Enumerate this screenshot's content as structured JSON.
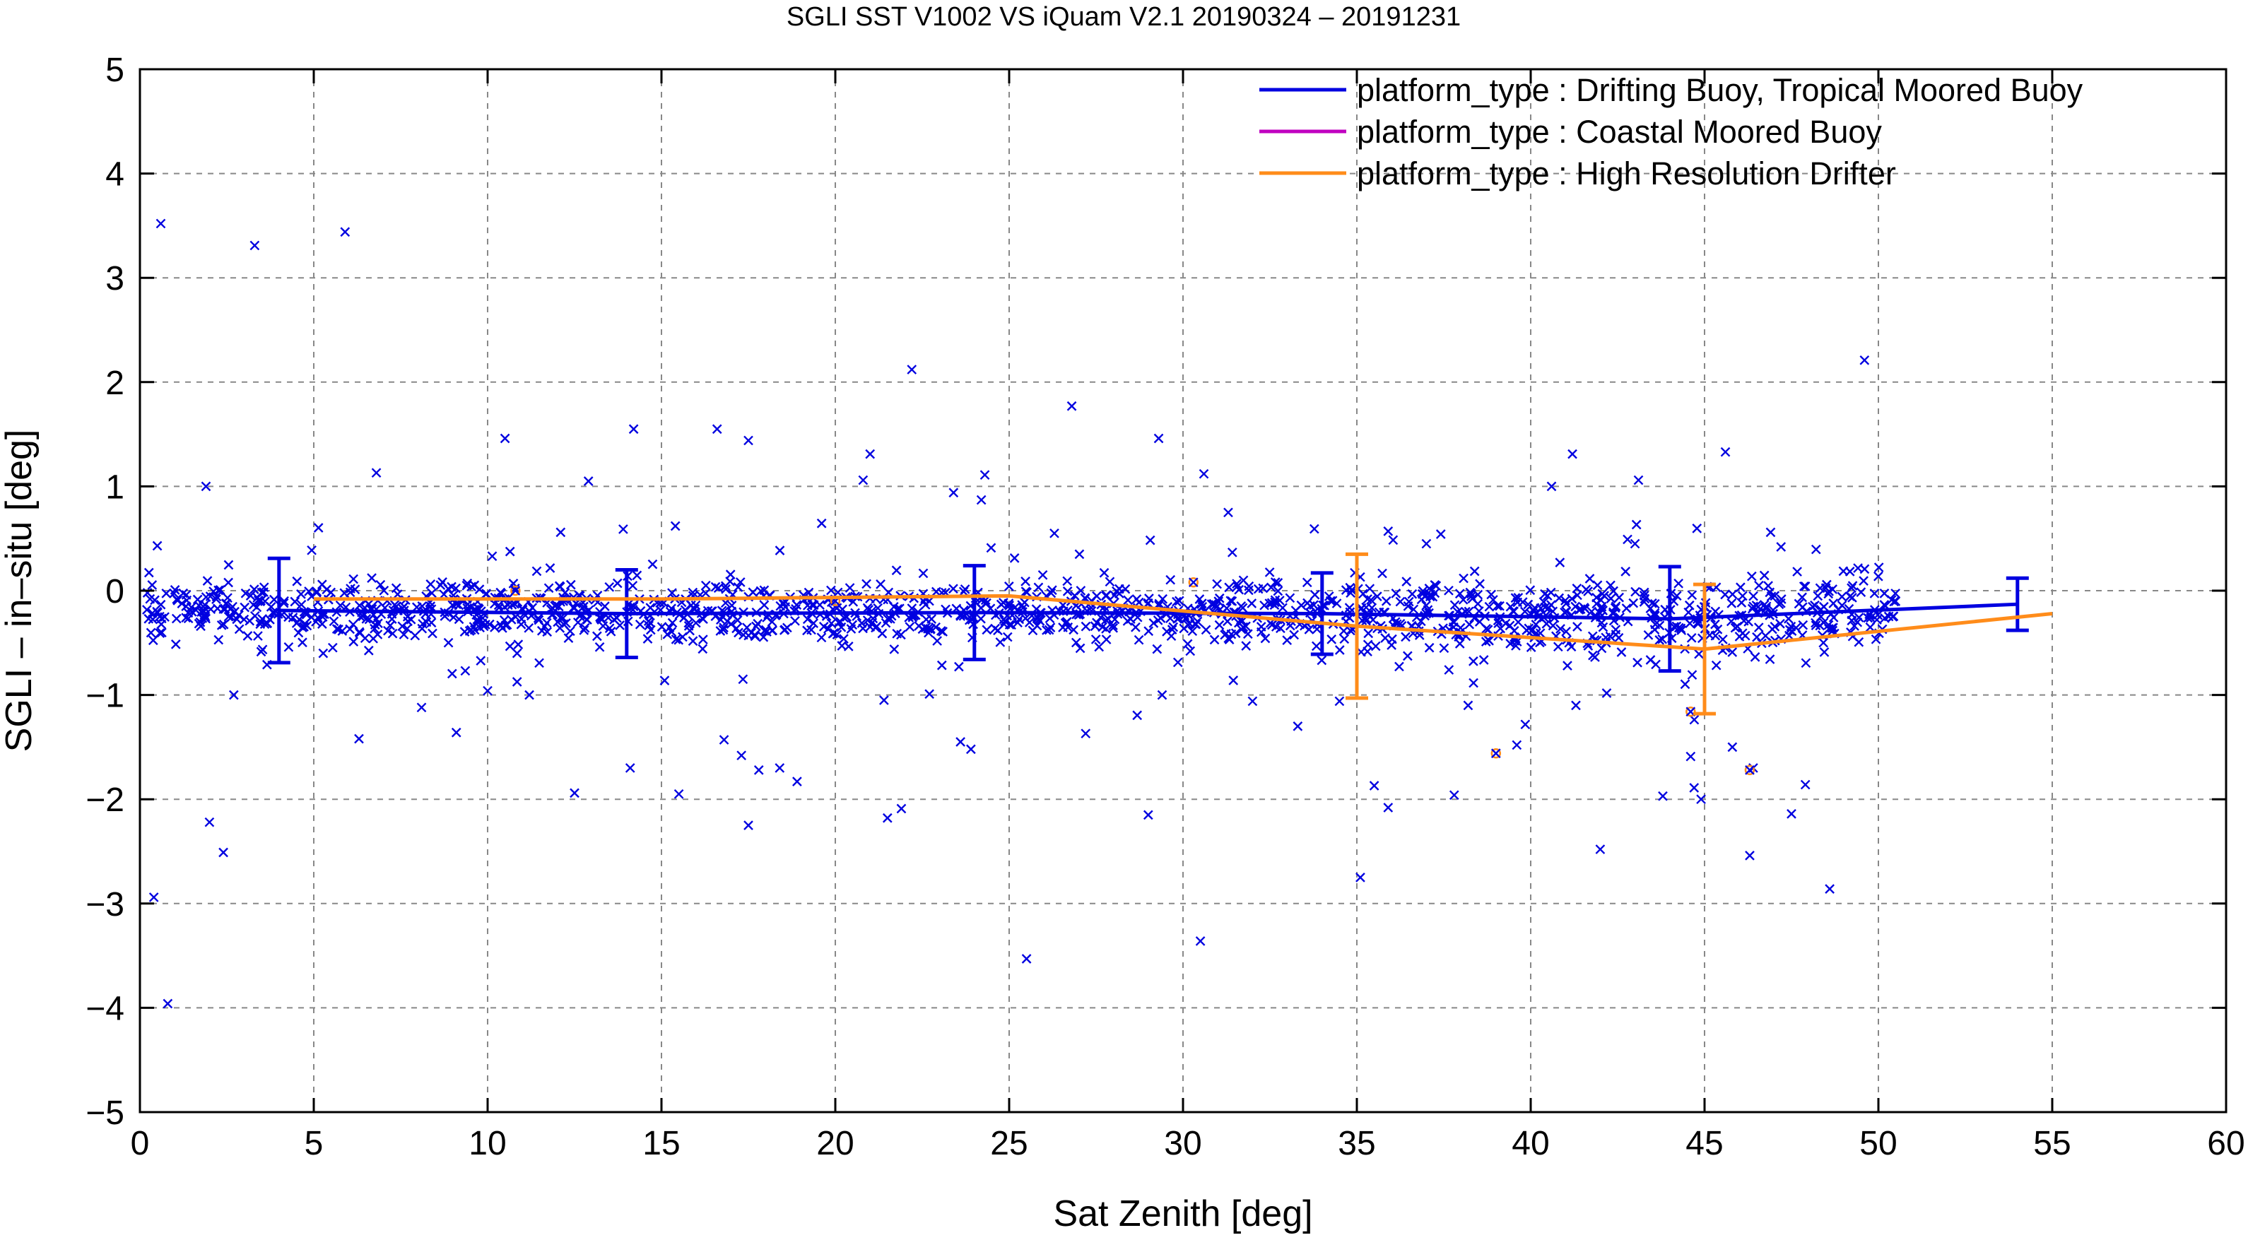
{
  "chart_data": {
    "type": "scatter",
    "title": "SGLI SST V1002 VS iQuam V2.1 20190324 – 20191231",
    "xlabel": "Sat Zenith [deg]",
    "ylabel": "SGLI – in–situ [deg]",
    "xlim": [
      0,
      60
    ],
    "ylim": [
      -5,
      5
    ],
    "x_ticks": [
      0,
      5,
      10,
      15,
      20,
      25,
      30,
      35,
      40,
      45,
      50,
      55,
      60
    ],
    "y_ticks": [
      -5,
      -4,
      -3,
      -2,
      -1,
      0,
      1,
      2,
      3,
      4,
      5
    ],
    "y_tick_labels": [
      "−5",
      "−4",
      "−3",
      "−2",
      "−1",
      "0",
      "1",
      "2",
      "3",
      "4",
      "5"
    ],
    "grid": true,
    "legend_position": "top-right",
    "colors": {
      "drifting": "#0000e0",
      "coastal": "#c000c0",
      "hrd": "#ff8c1a",
      "grid": "#888888"
    },
    "series": [
      {
        "name": "platform_type : Drifting Buoy, Tropical Moored Buoy",
        "color": "#0000e0",
        "mean_line": {
          "x": [
            4,
            14,
            24,
            34,
            44,
            54
          ],
          "y": [
            -0.19,
            -0.22,
            -0.21,
            -0.22,
            -0.27,
            -0.13
          ],
          "std": [
            0.5,
            0.42,
            0.45,
            0.39,
            0.5,
            0.25
          ]
        },
        "outliers": [
          [
            0.6,
            3.52
          ],
          [
            3.3,
            3.31
          ],
          [
            5.9,
            3.44
          ],
          [
            22.2,
            2.12
          ],
          [
            49.6,
            2.21
          ],
          [
            26.8,
            1.77
          ],
          [
            10.5,
            1.46
          ],
          [
            14.2,
            1.55
          ],
          [
            16.6,
            1.55
          ],
          [
            17.5,
            1.44
          ],
          [
            29.3,
            1.46
          ],
          [
            41.2,
            1.31
          ],
          [
            45.6,
            1.33
          ],
          [
            21.0,
            1.31
          ],
          [
            6.8,
            1.13
          ],
          [
            12.9,
            1.05
          ],
          [
            24.3,
            1.11
          ],
          [
            40.6,
            1.0
          ],
          [
            43.1,
            1.06
          ],
          [
            1.9,
            1.0
          ],
          [
            23.4,
            0.94
          ],
          [
            24.2,
            0.87
          ],
          [
            30.6,
            1.12
          ],
          [
            20.8,
            1.06
          ],
          [
            31.3,
            0.75
          ],
          [
            13.9,
            0.59
          ],
          [
            15.4,
            0.62
          ],
          [
            35.9,
            0.57
          ],
          [
            0.5,
            0.43
          ],
          [
            12.1,
            0.56
          ],
          [
            46.9,
            0.56
          ],
          [
            37.0,
            0.45
          ],
          [
            26.3,
            0.55
          ],
          [
            47.2,
            0.42
          ],
          [
            43.0,
            0.45
          ],
          [
            2.0,
            -2.22
          ],
          [
            2.4,
            -2.51
          ],
          [
            0.4,
            -2.94
          ],
          [
            0.8,
            -3.96
          ],
          [
            6.3,
            -1.42
          ],
          [
            9.1,
            -1.36
          ],
          [
            12.5,
            -1.94
          ],
          [
            14.1,
            -1.7
          ],
          [
            15.5,
            -1.95
          ],
          [
            16.8,
            -1.43
          ],
          [
            17.3,
            -1.58
          ],
          [
            17.8,
            -1.72
          ],
          [
            18.4,
            -1.7
          ],
          [
            18.9,
            -1.83
          ],
          [
            17.5,
            -2.25
          ],
          [
            21.5,
            -2.18
          ],
          [
            21.9,
            -2.09
          ],
          [
            23.6,
            -1.45
          ],
          [
            23.9,
            -1.52
          ],
          [
            25.5,
            -3.53
          ],
          [
            29.0,
            -2.15
          ],
          [
            30.5,
            -3.36
          ],
          [
            35.1,
            -2.75
          ],
          [
            35.5,
            -1.87
          ],
          [
            35.9,
            -2.08
          ],
          [
            37.8,
            -1.96
          ],
          [
            39.6,
            -1.48
          ],
          [
            42.0,
            -2.48
          ],
          [
            43.8,
            -1.97
          ],
          [
            44.6,
            -1.59
          ],
          [
            44.9,
            -2.0
          ],
          [
            45.8,
            -1.5
          ],
          [
            46.3,
            -2.54
          ],
          [
            47.5,
            -2.14
          ],
          [
            47.9,
            -1.86
          ],
          [
            48.6,
            -2.86
          ],
          [
            27.2,
            -1.37
          ],
          [
            33.3,
            -1.3
          ],
          [
            34.5,
            -1.06
          ],
          [
            38.2,
            -1.1
          ],
          [
            41.3,
            -1.1
          ],
          [
            29.4,
            -1.0
          ],
          [
            2.7,
            -1.0
          ],
          [
            21.4,
            -1.05
          ],
          [
            11.2,
            -1.0
          ],
          [
            44.7,
            -1.89
          ],
          [
            46.4,
            -1.7
          ],
          [
            32.0,
            -1.06
          ],
          [
            10.0,
            -0.96
          ],
          [
            8.1,
            -1.12
          ]
        ]
      },
      {
        "name": "platform_type : Coastal Moored Buoy",
        "color": "#c000c0"
      },
      {
        "name": "platform_type : High Resolution Drifter",
        "color": "#ff8c1a",
        "mean_line": {
          "x": [
            5,
            15,
            25,
            35,
            45,
            55
          ],
          "y": [
            -0.08,
            -0.08,
            -0.05,
            -0.34,
            -0.56,
            -0.22
          ],
          "std_at": [
            {
              "x": 35,
              "std": 0.69
            },
            {
              "x": 45,
              "std": 0.62
            }
          ]
        },
        "markers": [
          [
            39.0,
            -1.56
          ],
          [
            44.6,
            -1.16
          ],
          [
            46.3,
            -1.72
          ],
          [
            30.3,
            0.08
          ],
          [
            20.0,
            -0.1
          ],
          [
            10.8,
            0.0
          ]
        ]
      }
    ]
  }
}
